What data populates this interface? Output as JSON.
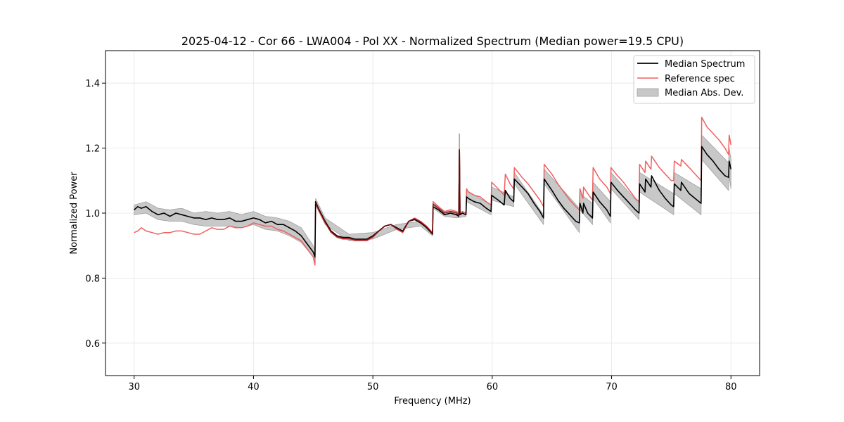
{
  "chart_data": {
    "type": "line",
    "title": "2025-04-12 - Cor 66 - LWA004 - Pol XX - Normalized Spectrum (Median power=19.5 CPU)",
    "xlabel": "Frequency (MHz)",
    "ylabel": "Normalized Power",
    "xlim": [
      27.6,
      82.4
    ],
    "ylim": [
      0.5,
      1.5
    ],
    "xticks": [
      30,
      40,
      50,
      60,
      70,
      80
    ],
    "yticks": [
      0.6,
      0.8,
      1.0,
      1.2,
      1.4
    ],
    "grid": true,
    "legend_position": "top-right",
    "colors": {
      "median": "#000000",
      "reference": "#f06060",
      "mad_fill": "#c8c8c8",
      "mad_edge": "#a0a0a0",
      "overlap": "#7a0a0a"
    },
    "series": [
      {
        "name": "Median Spectrum",
        "x": [
          30.0,
          30.3,
          30.6,
          31.0,
          31.5,
          32.0,
          32.5,
          33.0,
          33.5,
          34.0,
          34.5,
          35.0,
          35.5,
          36.0,
          36.5,
          37.0,
          37.5,
          38.0,
          38.5,
          39.0,
          39.5,
          40.0,
          40.5,
          41.0,
          41.5,
          42.0,
          42.5,
          43.0,
          43.5,
          44.0,
          44.5,
          45.0,
          45.15,
          45.2,
          45.5,
          46.0,
          46.5,
          47.0,
          47.5,
          48.0,
          48.5,
          49.0,
          49.5,
          50.0,
          50.5,
          51.0,
          51.5,
          52.0,
          52.5,
          53.0,
          53.5,
          54.0,
          54.5,
          55.0,
          55.05,
          55.5,
          56.0,
          56.5,
          57.0,
          57.2,
          57.25,
          57.3,
          57.5,
          57.8,
          57.85,
          58.0,
          58.5,
          59.0,
          59.5,
          59.9,
          59.95,
          60.5,
          61.0,
          61.1,
          61.5,
          61.8,
          61.85,
          62.5,
          63.0,
          63.5,
          64.0,
          64.3,
          64.35,
          65.0,
          65.5,
          66.0,
          66.5,
          67.0,
          67.3,
          67.35,
          67.6,
          67.65,
          68.0,
          68.4,
          68.45,
          69.0,
          69.6,
          69.9,
          69.95,
          70.5,
          71.0,
          71.5,
          72.0,
          72.3,
          72.35,
          72.8,
          72.85,
          73.3,
          73.35,
          74.0,
          74.5,
          75.0,
          75.2,
          75.25,
          75.8,
          75.85,
          76.5,
          77.0,
          77.5,
          77.55,
          78.0,
          78.5,
          79.0,
          79.5,
          79.8,
          79.85,
          80.0
        ],
        "values": [
          1.01,
          1.02,
          1.015,
          1.02,
          1.005,
          0.995,
          1.0,
          0.99,
          1.0,
          0.995,
          0.99,
          0.985,
          0.985,
          0.98,
          0.985,
          0.98,
          0.98,
          0.985,
          0.975,
          0.975,
          0.98,
          0.985,
          0.98,
          0.97,
          0.975,
          0.965,
          0.965,
          0.955,
          0.945,
          0.93,
          0.905,
          0.88,
          0.865,
          1.035,
          1.01,
          0.975,
          0.945,
          0.93,
          0.925,
          0.925,
          0.92,
          0.92,
          0.92,
          0.93,
          0.945,
          0.96,
          0.965,
          0.955,
          0.945,
          0.975,
          0.98,
          0.97,
          0.955,
          0.935,
          1.02,
          1.01,
          0.995,
          1.0,
          0.995,
          0.99,
          1.195,
          0.995,
          1.0,
          0.995,
          1.05,
          1.045,
          1.035,
          1.03,
          1.015,
          1.005,
          1.055,
          1.04,
          1.025,
          1.07,
          1.045,
          1.035,
          1.105,
          1.08,
          1.06,
          1.03,
          1.005,
          0.985,
          1.105,
          1.07,
          1.04,
          1.015,
          0.995,
          0.975,
          0.97,
          1.03,
          1.0,
          1.03,
          1.0,
          0.985,
          1.065,
          1.035,
          1.01,
          0.99,
          1.095,
          1.07,
          1.05,
          1.03,
          1.01,
          1.0,
          1.09,
          1.065,
          1.105,
          1.08,
          1.115,
          1.07,
          1.045,
          1.025,
          1.02,
          1.09,
          1.07,
          1.095,
          1.06,
          1.045,
          1.03,
          1.205,
          1.18,
          1.16,
          1.135,
          1.115,
          1.11,
          1.16,
          1.135
        ]
      },
      {
        "name": "Reference spec",
        "x": [
          30.0,
          30.3,
          30.6,
          31.0,
          31.5,
          32.0,
          32.5,
          33.0,
          33.5,
          34.0,
          34.5,
          35.0,
          35.5,
          36.0,
          36.5,
          37.0,
          37.5,
          38.0,
          38.5,
          39.0,
          39.5,
          40.0,
          40.5,
          41.0,
          41.5,
          42.0,
          42.5,
          43.0,
          43.5,
          44.0,
          44.5,
          45.0,
          45.15,
          45.2,
          45.5,
          46.0,
          46.5,
          47.0,
          47.5,
          48.0,
          48.5,
          49.0,
          49.5,
          50.0,
          50.5,
          51.0,
          51.5,
          52.0,
          52.5,
          53.0,
          53.5,
          54.0,
          54.5,
          55.0,
          55.05,
          55.5,
          56.0,
          56.5,
          57.0,
          57.2,
          57.25,
          57.3,
          57.5,
          57.8,
          57.85,
          58.0,
          58.5,
          59.0,
          59.5,
          59.9,
          59.95,
          60.5,
          61.0,
          61.1,
          61.5,
          61.8,
          61.85,
          62.5,
          63.0,
          63.5,
          64.0,
          64.3,
          64.35,
          65.0,
          65.5,
          66.0,
          66.5,
          67.0,
          67.3,
          67.35,
          67.6,
          67.65,
          68.0,
          68.4,
          68.45,
          69.0,
          69.6,
          69.9,
          69.95,
          70.5,
          71.0,
          71.5,
          72.0,
          72.3,
          72.35,
          72.8,
          72.85,
          73.3,
          73.35,
          74.0,
          74.5,
          75.0,
          75.2,
          75.25,
          75.8,
          75.85,
          76.5,
          77.0,
          77.5,
          77.55,
          78.0,
          78.5,
          79.0,
          79.5,
          79.8,
          79.85,
          80.0
        ],
        "values": [
          0.94,
          0.945,
          0.955,
          0.945,
          0.94,
          0.935,
          0.94,
          0.94,
          0.945,
          0.945,
          0.94,
          0.935,
          0.935,
          0.945,
          0.955,
          0.95,
          0.95,
          0.96,
          0.955,
          0.955,
          0.96,
          0.97,
          0.965,
          0.96,
          0.96,
          0.95,
          0.945,
          0.935,
          0.925,
          0.915,
          0.89,
          0.865,
          0.84,
          1.03,
          1.005,
          0.97,
          0.94,
          0.925,
          0.92,
          0.92,
          0.915,
          0.915,
          0.915,
          0.925,
          0.945,
          0.96,
          0.965,
          0.95,
          0.94,
          0.975,
          0.985,
          0.975,
          0.96,
          0.94,
          1.035,
          1.02,
          1.005,
          1.01,
          1.005,
          0.995,
          1.195,
          1.0,
          1.005,
          1.0,
          1.075,
          1.065,
          1.055,
          1.05,
          1.035,
          1.025,
          1.095,
          1.075,
          1.055,
          1.12,
          1.09,
          1.075,
          1.14,
          1.11,
          1.09,
          1.065,
          1.04,
          1.02,
          1.15,
          1.12,
          1.09,
          1.065,
          1.04,
          1.02,
          1.01,
          1.075,
          1.045,
          1.08,
          1.06,
          1.04,
          1.14,
          1.105,
          1.08,
          1.06,
          1.14,
          1.115,
          1.095,
          1.07,
          1.045,
          1.035,
          1.15,
          1.125,
          1.16,
          1.135,
          1.175,
          1.14,
          1.12,
          1.1,
          1.1,
          1.16,
          1.145,
          1.165,
          1.14,
          1.12,
          1.1,
          1.295,
          1.265,
          1.245,
          1.225,
          1.2,
          1.18,
          1.24,
          1.21
        ]
      },
      {
        "name": "Median Abs. Dev.",
        "type": "band",
        "x": [
          30.0,
          31.0,
          32.0,
          33.0,
          34.0,
          35.0,
          36.0,
          37.0,
          38.0,
          39.0,
          40.0,
          41.0,
          42.0,
          43.0,
          44.0,
          45.0,
          45.15,
          45.2,
          46.0,
          48.0,
          50.0,
          52.0,
          54.0,
          55.0,
          55.05,
          56.0,
          57.0,
          57.8,
          57.85,
          59.9,
          59.95,
          61.8,
          61.85,
          64.3,
          64.35,
          67.3,
          67.35,
          68.4,
          68.45,
          69.9,
          69.95,
          72.3,
          72.35,
          75.2,
          75.25,
          77.5,
          77.55,
          79.8,
          79.85,
          80.0
        ],
        "lower": [
          0.995,
          1.0,
          0.98,
          0.975,
          0.975,
          0.965,
          0.96,
          0.96,
          0.96,
          0.955,
          0.965,
          0.95,
          0.945,
          0.93,
          0.91,
          0.865,
          0.845,
          1.025,
          0.965,
          0.915,
          0.92,
          0.95,
          0.96,
          0.93,
          1.015,
          0.99,
          0.985,
          0.99,
          1.035,
          0.995,
          1.04,
          1.02,
          1.09,
          0.965,
          1.09,
          0.94,
          1.01,
          0.965,
          1.045,
          0.97,
          1.075,
          0.98,
          1.065,
          0.995,
          1.06,
          0.995,
          1.165,
          1.07,
          1.115,
          1.075
        ],
        "upper": [
          1.025,
          1.035,
          1.015,
          1.01,
          1.015,
          1.0,
          1.005,
          1.0,
          1.005,
          0.995,
          1.005,
          0.99,
          0.985,
          0.975,
          0.955,
          0.9,
          0.885,
          1.045,
          0.985,
          0.935,
          0.94,
          0.965,
          0.975,
          0.94,
          1.03,
          1.005,
          1.005,
          1.0,
          1.07,
          1.025,
          1.08,
          1.05,
          1.125,
          0.995,
          1.135,
          1.015,
          1.06,
          1.03,
          1.095,
          1.035,
          1.125,
          1.03,
          1.125,
          1.06,
          1.125,
          1.075,
          1.24,
          1.155,
          1.2,
          1.165
        ]
      }
    ],
    "spike": {
      "x": 57.25,
      "band_top": 1.245
    }
  }
}
